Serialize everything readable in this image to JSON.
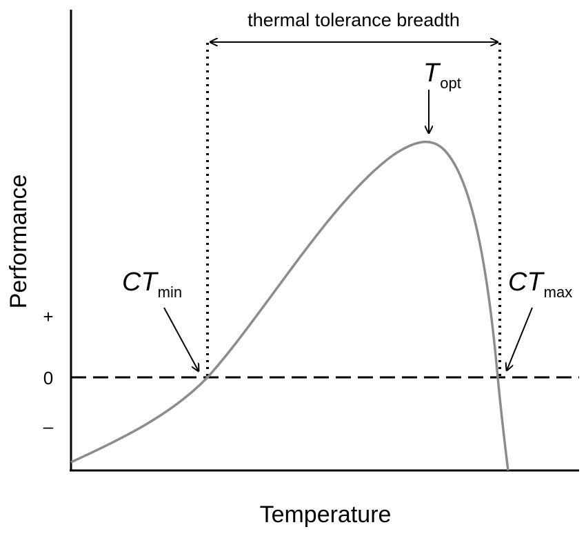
{
  "diagram": {
    "title_annotation": "thermal tolerance breadth",
    "x_axis_label": "Temperature",
    "y_axis_label": "Performance",
    "y_ticks": {
      "plus": "+",
      "zero": "0",
      "minus": "–"
    },
    "markers": {
      "ct_min": {
        "main": "CT",
        "sub": "min"
      },
      "t_opt": {
        "main": "T",
        "sub": "opt"
      },
      "ct_max": {
        "main": "CT",
        "sub": "max"
      }
    },
    "colors": {
      "curve": "#8c8c8c",
      "axis": "#000000",
      "dashed_zero_line": "#000000",
      "dotted_bounds": "#000000"
    }
  }
}
